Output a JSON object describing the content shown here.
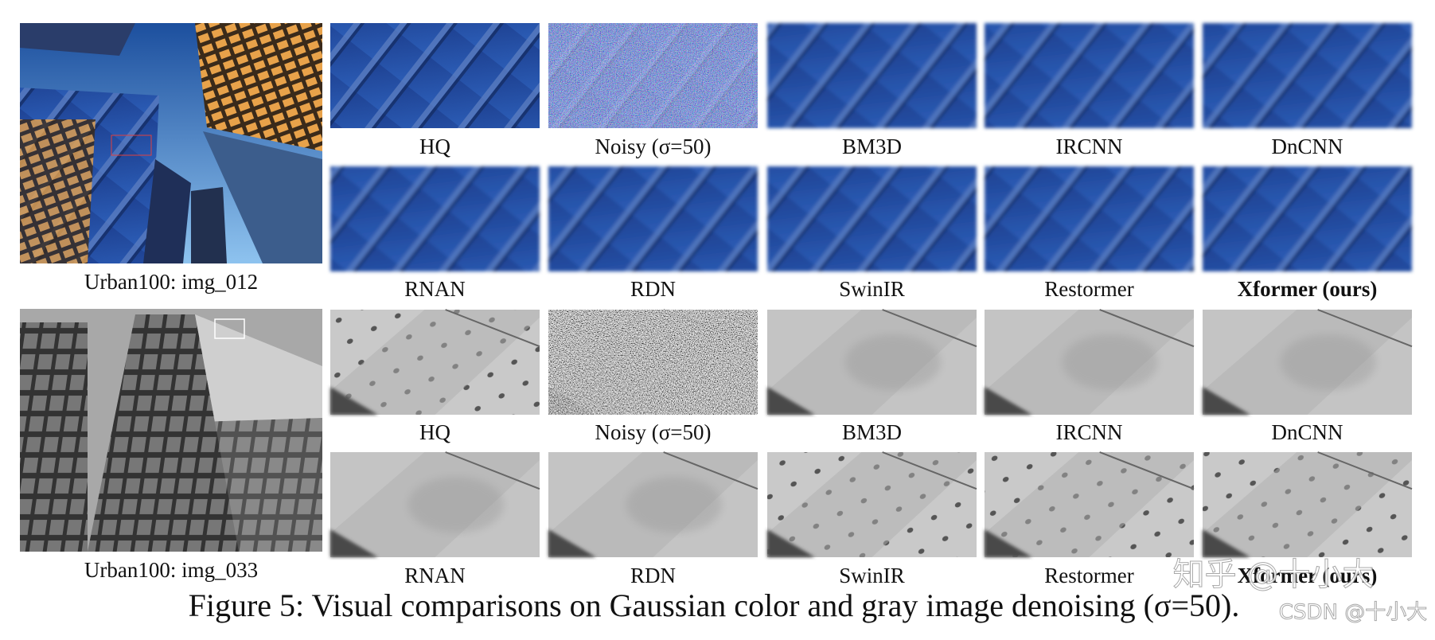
{
  "figure": {
    "groups": [
      {
        "image_caption": "Urban100: img_012",
        "labels": [
          "HQ",
          "Noisy (σ=50)",
          "BM3D",
          "IRCNN",
          "DnCNN",
          "RNAN",
          "RDN",
          "SwinIR",
          "Restormer",
          "Xformer (ours)"
        ]
      },
      {
        "image_caption": "Urban100: img_033",
        "labels": [
          "HQ",
          "Noisy (σ=50)",
          "BM3D",
          "IRCNN",
          "DnCNN",
          "RNAN",
          "RDN",
          "SwinIR",
          "Restormer",
          "Xformer (ours)"
        ]
      }
    ],
    "caption": "Figure 5: Visual comparisons on Gaussian color and gray image denoising (σ=50)."
  },
  "watermark": [
    "知乎 @十小大",
    "CSDN @十小大"
  ]
}
